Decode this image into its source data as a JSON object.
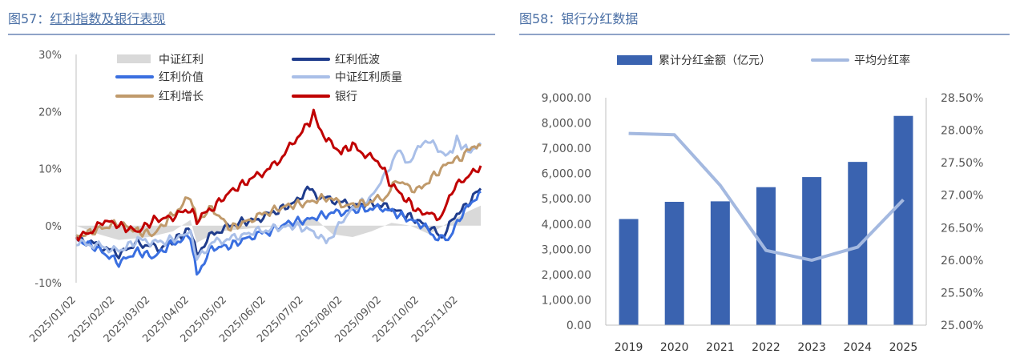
{
  "fig57": {
    "title_prefix": "图57：",
    "title_main": "红利指数及银行表现"
  },
  "fig58": {
    "title_prefix": "图58：",
    "title_main": "银行分红数据"
  },
  "colors": {
    "title": "#4a6fa5",
    "rule": "#8fa3c8",
    "zhongzheng": "#d9d9d9",
    "dibo": "#1f3c8c",
    "jiazhi": "#3a6fe0",
    "zhiliang": "#a9bfe8",
    "zengzhang": "#c09a6b",
    "yinhang": "#c00000",
    "bar": "#3a63b0",
    "rate_line": "#a4b9e0"
  },
  "chart_data": [
    {
      "type": "line",
      "ylim": [
        -10,
        30
      ],
      "yticks": [
        "30%",
        "20%",
        "10%",
        "0%",
        "-10%"
      ],
      "ytick_values": [
        30,
        20,
        10,
        0,
        -10
      ],
      "x_start": "2025/01/02",
      "x_end": "2025/11/20",
      "xtick_labels": [
        "2025/01/02",
        "2025/02/02",
        "2025/03/02",
        "2025/04/02",
        "2025/05/02",
        "2025/06/02",
        "2025/07/02",
        "2025/08/02",
        "2025/09/02",
        "2025/10/02",
        "2025/11/02"
      ],
      "legend_position": "top",
      "series": [
        {
          "name": "中证红利",
          "style": "area",
          "color_key": "zhongzheng",
          "points": [
            [
              "2025/01/02",
              0
            ],
            [
              "2025/01/20",
              -1.5
            ],
            [
              "2025/02/05",
              -2.5
            ],
            [
              "2025/03/01",
              -2
            ],
            [
              "2025/03/20",
              -1
            ],
            [
              "2025/04/03",
              1
            ],
            [
              "2025/04/08",
              -3
            ],
            [
              "2025/04/25",
              -1
            ],
            [
              "2025/05/20",
              -0.5
            ],
            [
              "2025/06/15",
              0
            ],
            [
              "2025/07/10",
              1.5
            ],
            [
              "2025/07/25",
              -1.5
            ],
            [
              "2025/08/10",
              -2
            ],
            [
              "2025/08/25",
              -1
            ],
            [
              "2025/09/10",
              0.5
            ],
            [
              "2025/09/25",
              0
            ],
            [
              "2025/10/10",
              -1.5
            ],
            [
              "2025/10/25",
              0.5
            ],
            [
              "2025/11/10",
              2.5
            ],
            [
              "2025/11/20",
              3.5
            ]
          ]
        },
        {
          "name": "红利低波",
          "style": "line",
          "color_key": "dibo",
          "points": [
            [
              "2025/01/02",
              -2
            ],
            [
              "2025/01/20",
              -3.5
            ],
            [
              "2025/02/05",
              -5
            ],
            [
              "2025/02/20",
              -3
            ],
            [
              "2025/03/10",
              -4
            ],
            [
              "2025/03/25",
              -2
            ],
            [
              "2025/04/03",
              -0.5
            ],
            [
              "2025/04/08",
              -5
            ],
            [
              "2025/04/20",
              -1.5
            ],
            [
              "2025/05/10",
              0.5
            ],
            [
              "2025/05/25",
              1
            ],
            [
              "2025/06/10",
              2.5
            ],
            [
              "2025/06/25",
              4
            ],
            [
              "2025/07/05",
              6.5
            ],
            [
              "2025/07/15",
              5
            ],
            [
              "2025/07/25",
              4.5
            ],
            [
              "2025/08/10",
              3.5
            ],
            [
              "2025/08/25",
              4
            ],
            [
              "2025/09/10",
              3
            ],
            [
              "2025/09/25",
              1.5
            ],
            [
              "2025/10/08",
              0
            ],
            [
              "2025/10/20",
              -2
            ],
            [
              "2025/11/01",
              2
            ],
            [
              "2025/11/10",
              4
            ],
            [
              "2025/11/20",
              6.5
            ]
          ]
        },
        {
          "name": "红利价值",
          "style": "line",
          "color_key": "jiazhi",
          "points": [
            [
              "2025/01/02",
              -2.5
            ],
            [
              "2025/01/15",
              -3.5
            ],
            [
              "2025/02/05",
              -6.5
            ],
            [
              "2025/02/20",
              -4.5
            ],
            [
              "2025/03/05",
              -5.5
            ],
            [
              "2025/03/20",
              -3
            ],
            [
              "2025/04/03",
              -2
            ],
            [
              "2025/04/08",
              -8.5
            ],
            [
              "2025/04/20",
              -4
            ],
            [
              "2025/05/05",
              -3.5
            ],
            [
              "2025/05/20",
              -2
            ],
            [
              "2025/06/05",
              -1
            ],
            [
              "2025/06/20",
              0.5
            ],
            [
              "2025/07/05",
              1
            ],
            [
              "2025/07/20",
              2
            ],
            [
              "2025/08/05",
              2.5
            ],
            [
              "2025/08/20",
              3
            ],
            [
              "2025/09/05",
              3
            ],
            [
              "2025/09/20",
              1.5
            ],
            [
              "2025/10/05",
              0
            ],
            [
              "2025/10/15",
              -2
            ],
            [
              "2025/10/25",
              -2.5
            ],
            [
              "2025/11/05",
              2
            ],
            [
              "2025/11/15",
              4.5
            ],
            [
              "2025/11/20",
              6
            ]
          ]
        },
        {
          "name": "中证红利质量",
          "style": "line",
          "color_key": "zhiliang",
          "points": [
            [
              "2025/01/02",
              -3
            ],
            [
              "2025/01/20",
              -3.5
            ],
            [
              "2025/02/05",
              -4.5
            ],
            [
              "2025/02/20",
              -2.5
            ],
            [
              "2025/03/10",
              -3
            ],
            [
              "2025/03/25",
              -2
            ],
            [
              "2025/04/03",
              -1
            ],
            [
              "2025/04/08",
              -6
            ],
            [
              "2025/04/20",
              -3
            ],
            [
              "2025/05/10",
              -2
            ],
            [
              "2025/05/25",
              -1
            ],
            [
              "2025/06/10",
              -0.5
            ],
            [
              "2025/06/25",
              0
            ],
            [
              "2025/07/10",
              -1
            ],
            [
              "2025/07/20",
              -3
            ],
            [
              "2025/07/30",
              0
            ],
            [
              "2025/08/10",
              3
            ],
            [
              "2025/08/25",
              5
            ],
            [
              "2025/09/05",
              9
            ],
            [
              "2025/09/15",
              13
            ],
            [
              "2025/09/25",
              11
            ],
            [
              "2025/10/05",
              15
            ],
            [
              "2025/10/15",
              14
            ],
            [
              "2025/10/25",
              12
            ],
            [
              "2025/11/01",
              15
            ],
            [
              "2025/11/10",
              13
            ],
            [
              "2025/11/20",
              14.5
            ]
          ]
        },
        {
          "name": "红利增长",
          "style": "line",
          "color_key": "zengzhang",
          "points": [
            [
              "2025/01/02",
              -2
            ],
            [
              "2025/01/15",
              -1
            ],
            [
              "2025/02/05",
              0.5
            ],
            [
              "2025/02/20",
              -1
            ],
            [
              "2025/03/05",
              -1.5
            ],
            [
              "2025/03/20",
              2
            ],
            [
              "2025/04/03",
              5
            ],
            [
              "2025/04/08",
              1
            ],
            [
              "2025/04/20",
              3
            ],
            [
              "2025/05/05",
              -0.5
            ],
            [
              "2025/05/20",
              1
            ],
            [
              "2025/06/05",
              2.5
            ],
            [
              "2025/06/20",
              3.5
            ],
            [
              "2025/07/05",
              4
            ],
            [
              "2025/07/20",
              5
            ],
            [
              "2025/08/05",
              3.5
            ],
            [
              "2025/08/20",
              4
            ],
            [
              "2025/09/05",
              5
            ],
            [
              "2025/09/15",
              8
            ],
            [
              "2025/09/30",
              6
            ],
            [
              "2025/10/10",
              8
            ],
            [
              "2025/10/25",
              11
            ],
            [
              "2025/11/05",
              12
            ],
            [
              "2025/11/15",
              14
            ],
            [
              "2025/11/20",
              14
            ]
          ]
        },
        {
          "name": "银行",
          "style": "line",
          "color_key": "yinhang",
          "points": [
            [
              "2025/01/02",
              -2
            ],
            [
              "2025/01/15",
              -1
            ],
            [
              "2025/01/25",
              1
            ],
            [
              "2025/02/05",
              0
            ],
            [
              "2025/02/20",
              -1
            ],
            [
              "2025/03/05",
              1
            ],
            [
              "2025/03/20",
              1.5
            ],
            [
              "2025/04/03",
              3
            ],
            [
              "2025/04/08",
              1
            ],
            [
              "2025/04/20",
              3
            ],
            [
              "2025/05/05",
              6
            ],
            [
              "2025/05/20",
              8
            ],
            [
              "2025/06/05",
              10
            ],
            [
              "2025/06/15",
              12
            ],
            [
              "2025/06/25",
              15
            ],
            [
              "2025/07/05",
              17.5
            ],
            [
              "2025/07/10",
              19.5
            ],
            [
              "2025/07/20",
              15
            ],
            [
              "2025/08/01",
              13
            ],
            [
              "2025/08/10",
              14
            ],
            [
              "2025/08/20",
              12.5
            ],
            [
              "2025/09/01",
              11
            ],
            [
              "2025/09/10",
              7
            ],
            [
              "2025/09/20",
              5
            ],
            [
              "2025/10/01",
              2.5
            ],
            [
              "2025/10/10",
              2
            ],
            [
              "2025/10/20",
              1.5
            ],
            [
              "2025/10/30",
              7
            ],
            [
              "2025/11/10",
              8.5
            ],
            [
              "2025/11/20",
              10.5
            ]
          ]
        }
      ]
    },
    {
      "type": "bar",
      "categories": [
        "2019",
        "2020",
        "2021",
        "2022",
        "2023",
        "2024",
        "2025"
      ],
      "ylim": [
        0,
        9000
      ],
      "yticks": [
        "9,000.00",
        "8,000.00",
        "7,000.00",
        "6,000.00",
        "5,000.00",
        "4,000.00",
        "3,000.00",
        "2,000.00",
        "1,000.00",
        "0.00"
      ],
      "ytick_values": [
        9000,
        8000,
        7000,
        6000,
        5000,
        4000,
        3000,
        2000,
        1000,
        0
      ],
      "y2lim": [
        25.0,
        28.5
      ],
      "y2ticks": [
        "28.50%",
        "28.00%",
        "27.50%",
        "27.00%",
        "26.50%",
        "26.00%",
        "25.50%",
        "25.00%"
      ],
      "y2tick_values": [
        28.5,
        28.0,
        27.5,
        27.0,
        26.5,
        26.0,
        25.5,
        25.0
      ],
      "legend_position": "top",
      "series": [
        {
          "name": "累计分红金额（亿元）",
          "axis": "left",
          "style": "bar",
          "values": [
            4200,
            4880,
            4900,
            5460,
            5860,
            6460,
            8280
          ]
        },
        {
          "name": "平均分红率",
          "axis": "right",
          "style": "line",
          "values": [
            27.95,
            27.93,
            27.15,
            26.15,
            26.0,
            26.2,
            26.93
          ]
        }
      ]
    }
  ]
}
